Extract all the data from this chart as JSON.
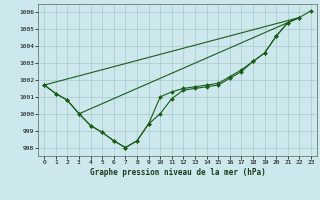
{
  "title": "Graphe pression niveau de la mer (hPa)",
  "bg_color": "#cde8ec",
  "grid_color": "#aac8cc",
  "line_color": "#1a5c1a",
  "marker_color": "#1a5c1a",
  "xlim": [
    -0.5,
    23.5
  ],
  "ylim": [
    997.5,
    1006.5
  ],
  "yticks": [
    998,
    999,
    1000,
    1001,
    1002,
    1003,
    1004,
    1005,
    1006
  ],
  "xticks": [
    0,
    1,
    2,
    3,
    4,
    5,
    6,
    7,
    8,
    9,
    10,
    11,
    12,
    13,
    14,
    15,
    16,
    17,
    18,
    19,
    20,
    21,
    22,
    23
  ],
  "lines": [
    {
      "x": [
        0,
        1,
        2,
        3,
        4,
        5,
        6,
        7,
        8,
        9,
        10,
        11,
        12,
        13,
        14,
        15,
        16,
        17,
        18,
        19,
        20,
        21,
        22
      ],
      "y": [
        1001.7,
        1001.2,
        1000.8,
        1000.0,
        999.3,
        998.9,
        998.4,
        998.0,
        998.4,
        999.4,
        1000.0,
        1000.9,
        1001.4,
        1001.5,
        1001.6,
        1001.7,
        1002.1,
        1002.5,
        1003.1,
        1003.6,
        1004.6,
        1005.4,
        1005.7
      ]
    },
    {
      "x": [
        0,
        22
      ],
      "y": [
        1001.7,
        1005.7
      ]
    },
    {
      "x": [
        3,
        22
      ],
      "y": [
        1000.0,
        1005.7
      ]
    },
    {
      "x": [
        0,
        1,
        2,
        3,
        4,
        5,
        6,
        7,
        8,
        9,
        10,
        11,
        12,
        13,
        14,
        15,
        16,
        17,
        18,
        19,
        20,
        21,
        22,
        23
      ],
      "y": [
        1001.7,
        1001.2,
        1000.8,
        1000.0,
        999.3,
        998.9,
        998.4,
        998.0,
        998.4,
        999.4,
        1001.0,
        1001.3,
        1001.5,
        1001.6,
        1001.7,
        1001.8,
        1002.2,
        1002.6,
        1003.1,
        1003.6,
        1004.6,
        1005.4,
        1005.7,
        1006.1
      ]
    }
  ]
}
